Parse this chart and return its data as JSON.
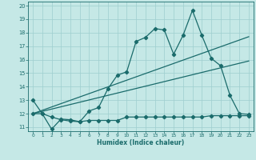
{
  "xlabel": "Humidex (Indice chaleur)",
  "background_color": "#c5e8e6",
  "grid_color": "#9ecece",
  "line_color": "#1a6b6b",
  "xlim": [
    -0.5,
    23.5
  ],
  "ylim": [
    10.7,
    20.3
  ],
  "xticks": [
    0,
    1,
    2,
    3,
    4,
    5,
    6,
    7,
    8,
    9,
    10,
    11,
    12,
    13,
    14,
    15,
    16,
    17,
    18,
    19,
    20,
    21,
    22,
    23
  ],
  "yticks": [
    11,
    12,
    13,
    14,
    15,
    16,
    17,
    18,
    19,
    20
  ],
  "line1_x": [
    0,
    1,
    2,
    3,
    4,
    5,
    6,
    7,
    8,
    9,
    10,
    11,
    12,
    13,
    14,
    15,
    16,
    17,
    18,
    19,
    20,
    21,
    22,
    23
  ],
  "line1_y": [
    13.0,
    12.0,
    10.85,
    11.6,
    11.55,
    11.4,
    12.2,
    12.45,
    13.85,
    14.85,
    15.1,
    17.35,
    17.65,
    18.3,
    18.2,
    16.4,
    17.8,
    19.65,
    17.8,
    16.1,
    15.55,
    13.35,
    12.0,
    11.95
  ],
  "line2_x": [
    0,
    1,
    2,
    3,
    4,
    5,
    6,
    7,
    8,
    9,
    10,
    11,
    12,
    13,
    14,
    15,
    16,
    17,
    18,
    19,
    20,
    21,
    22,
    23
  ],
  "line2_y": [
    12.0,
    12.0,
    11.75,
    11.55,
    11.45,
    11.4,
    11.5,
    11.5,
    11.5,
    11.5,
    11.75,
    11.75,
    11.75,
    11.75,
    11.75,
    11.75,
    11.75,
    11.75,
    11.75,
    11.85,
    11.85,
    11.85,
    11.85,
    11.85
  ],
  "line3_x": [
    0,
    23
  ],
  "line3_y": [
    12.0,
    17.7
  ],
  "line4_x": [
    0,
    23
  ],
  "line4_y": [
    12.0,
    15.9
  ]
}
